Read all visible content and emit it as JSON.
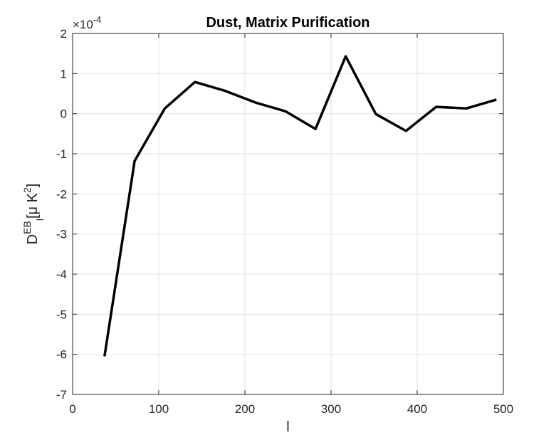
{
  "chart_data": {
    "type": "line",
    "title": "Dust, Matrix Purification",
    "xlabel": "l",
    "ylabel": {
      "base": "D",
      "sup": "EB",
      "sub": "l",
      "unit_open": "[",
      "unit_mu": "μ",
      "unit_k": " K",
      "unit_sup": "2",
      "unit_close": "]"
    },
    "y_multiplier": {
      "prefix": "×10",
      "exponent": "-4"
    },
    "xlim": [
      0,
      500
    ],
    "ylim": [
      -7,
      2
    ],
    "xticks": [
      0,
      100,
      200,
      300,
      400,
      500
    ],
    "yticks": [
      -7,
      -6,
      -5,
      -4,
      -3,
      -2,
      -1,
      0,
      1,
      2
    ],
    "xtick_labels": [
      "0",
      "100",
      "200",
      "300",
      "400",
      "500"
    ],
    "ytick_labels": [
      "-7",
      "-6",
      "-5",
      "-4",
      "-3",
      "-2",
      "-1",
      "0",
      "1",
      "2"
    ],
    "grid": true,
    "series": [
      {
        "color": "#000000",
        "x": [
          37,
          72,
          107,
          142,
          177,
          212,
          247,
          282,
          317,
          352,
          387,
          422,
          457,
          492
        ],
        "y": [
          -6.05,
          -1.18,
          0.13,
          0.79,
          0.57,
          0.28,
          0.06,
          -0.38,
          1.43,
          -0.01,
          -0.43,
          0.17,
          0.13,
          0.35
        ]
      }
    ]
  }
}
